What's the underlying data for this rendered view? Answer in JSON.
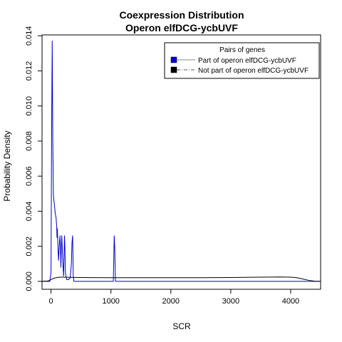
{
  "chart_data": {
    "type": "line",
    "title": "Coexpression Distribution",
    "subtitle": "Operon elfDCG-ycbUVF",
    "xlabel": "SCR",
    "ylabel": "Probability Density",
    "xlim": [
      -150,
      4500
    ],
    "ylim": [
      -0.00045,
      0.01405
    ],
    "x_ticks": [
      0,
      1000,
      2000,
      3000,
      4000
    ],
    "x_tick_labels": [
      "0",
      "1000",
      "2000",
      "3000",
      "4000"
    ],
    "y_ticks": [
      0,
      0.002,
      0.004,
      0.006,
      0.008,
      0.01,
      0.012,
      0.014
    ],
    "y_tick_labels": [
      "0.000",
      "0.002",
      "0.004",
      "0.006",
      "0.008",
      "0.010",
      "0.012",
      "0.014"
    ],
    "grid": false,
    "legend": {
      "title": "Pairs of genes",
      "position": "top-right"
    },
    "series": [
      {
        "name": "Part of operon elfDCG-ycbUVF",
        "color": "#0000cc",
        "x": [
          -150,
          -20,
          0,
          10,
          20,
          30,
          40,
          55,
          70,
          85,
          95,
          100,
          105,
          110,
          115,
          125,
          140,
          150,
          158,
          165,
          172,
          180,
          195,
          210,
          218,
          225,
          232,
          240,
          260,
          290,
          320,
          340,
          350,
          360,
          365,
          370,
          380,
          400,
          500,
          700,
          900,
          1040,
          1055,
          1065,
          1075,
          1090,
          1200,
          2000,
          3000,
          4000,
          4500
        ],
        "y": [
          0,
          0,
          0.0005,
          0.0085,
          0.0137,
          0.0078,
          0.0049,
          0.0044,
          0.0039,
          0.0036,
          0.0031,
          0.0025,
          0.003,
          0.0026,
          0.002,
          0.0012,
          0.0022,
          0.0026,
          0.0018,
          0.0008,
          0.002,
          0.0026,
          0.0012,
          0.0003,
          0.0015,
          0.0026,
          0.0019,
          0.0005,
          0.0001,
          0.0001,
          0.0002,
          0.001,
          0.0022,
          0.0026,
          0.0018,
          0.0004,
          0.0,
          0.0,
          0.0,
          0.0,
          0.0,
          0.0,
          0.0026,
          0.0018,
          0.0,
          0.0,
          0.0,
          0.0,
          0.0,
          0.0,
          0.0
        ]
      },
      {
        "name": "Not part of operon elfDCG-ycbUVF",
        "color": "#000000",
        "x": [
          -150,
          -50,
          0,
          50,
          100,
          150,
          200,
          300,
          500,
          1000,
          1500,
          2000,
          2500,
          3000,
          3500,
          3800,
          4000,
          4100,
          4200,
          4300,
          4400,
          4500
        ],
        "y": [
          0.0,
          2e-05,
          0.0001,
          0.00018,
          0.00022,
          0.00024,
          0.00024,
          0.00023,
          0.00022,
          0.00021,
          0.00021,
          0.00021,
          0.00021,
          0.00022,
          0.00024,
          0.00025,
          0.00024,
          0.00021,
          0.00014,
          6e-05,
          1e-05,
          0.0
        ]
      }
    ]
  }
}
